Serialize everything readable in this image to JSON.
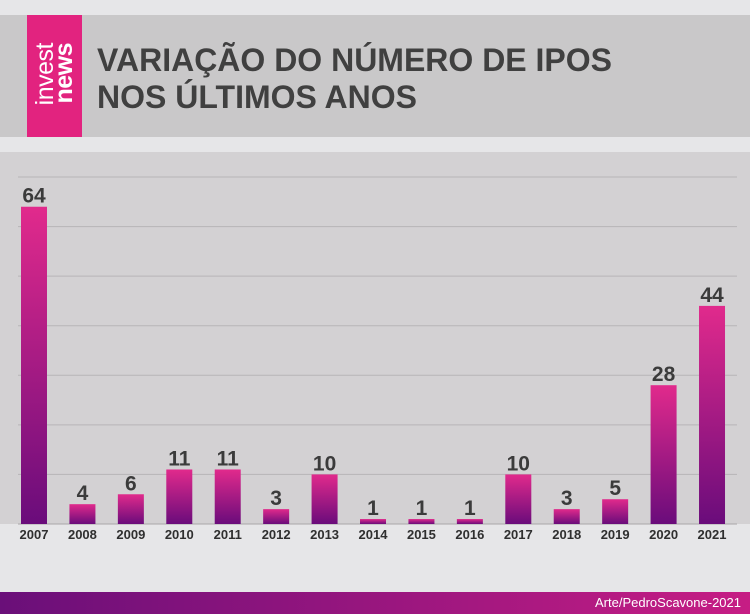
{
  "brand": {
    "logo_line1": "invest",
    "logo_line2": "news",
    "logo_color": "#e2237f"
  },
  "chart_data": {
    "type": "bar",
    "title_lines": [
      "VARIAÇÃO DO NÚMERO DE IPOS",
      "NOS ÚLTIMOS ANOS"
    ],
    "categories": [
      "2007",
      "2008",
      "2009",
      "2010",
      "2011",
      "2012",
      "2013",
      "2014",
      "2015",
      "2016",
      "2017",
      "2018",
      "2019",
      "2020",
      "2021"
    ],
    "values": [
      64,
      4,
      6,
      11,
      11,
      3,
      10,
      1,
      1,
      1,
      10,
      3,
      5,
      28,
      44
    ],
    "xlabel": "",
    "ylabel": "",
    "ylim": [
      0,
      70
    ],
    "grid": true,
    "data_labels": true,
    "colors": {
      "bar_top": "#e12a8c",
      "bar_bottom": "#6a0c7b",
      "value_label": "#3b3b3b",
      "tick_label": "#2f2f2f",
      "grid": "#b7b5b7",
      "baseline": "#a9a7a9",
      "plot_background": "#d3d1d3"
    }
  },
  "footer": {
    "credit": "Arte/PedroScavone-2021",
    "gradient": [
      "#6a0f79",
      "#c61d84"
    ]
  }
}
